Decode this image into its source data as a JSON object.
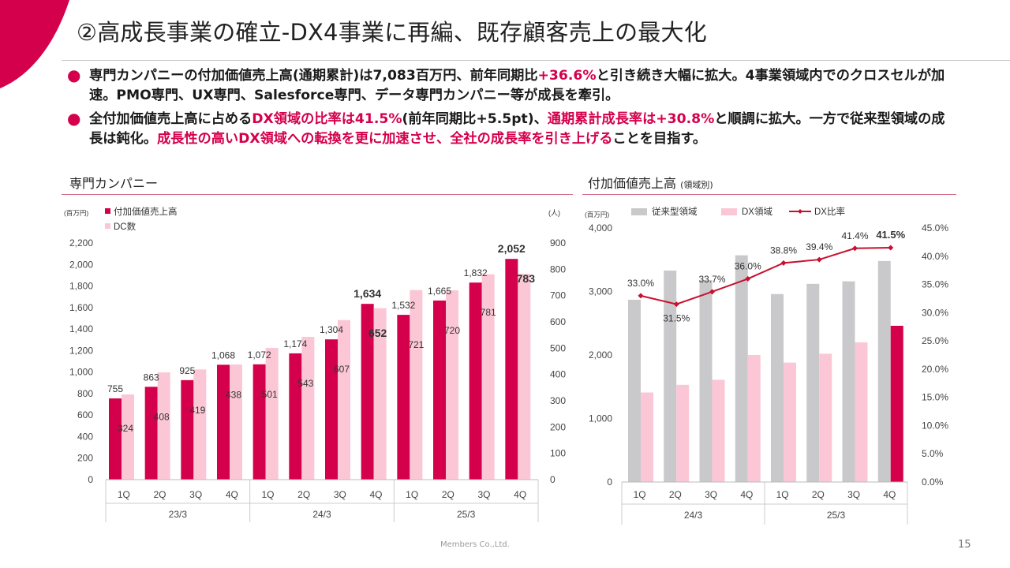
{
  "title": "②高成長事業の確立-DX4事業に再編、既存顧客売上の最大化",
  "bullets": [
    {
      "pre": "専門カンパニーの付加価値売上高(通期累計)は7,083百万円、前年同期比",
      "hl1": "+36.6%",
      "mid": "と引き続き大幅に拡大。4事業領域内でのクロスセルが加速。PMO専門、UX専門、Salesforce専門、データ専門カンパニー等が成長を牽引。",
      "hl2": "",
      "post": ""
    },
    {
      "pre": "全付加価値売上高に占める",
      "hl1": "DX領域の比率は41.5%",
      "mid": "(前年同期比+5.5pt)、",
      "hl2": "通期累計成長率は+30.8%",
      "post": "と順調に拡大。一方で従来型領域の成長は鈍化。",
      "hl3": "成長性の高いDX領域への転換を更に加速させ、全社の成長率を引き上げる",
      "post2": "ことを目指す。"
    }
  ],
  "colors": {
    "accent": "#d5004b",
    "pink": "#fbc7d6",
    "gray": "#c9c9cc",
    "line": "#c8102e"
  },
  "footer": "Members Co.,Ltd.",
  "page_number": "15",
  "chart_data": [
    {
      "type": "bar",
      "title": "専門カンパニー",
      "ylabel_left": "(百万円)",
      "ylabel_right": "(人)",
      "categories": [
        "1Q",
        "2Q",
        "3Q",
        "4Q",
        "1Q",
        "2Q",
        "3Q",
        "4Q",
        "1Q",
        "2Q",
        "3Q",
        "4Q"
      ],
      "groups": [
        {
          "label": "23/3",
          "count": 4
        },
        {
          "label": "24/3",
          "count": 4
        },
        {
          "label": "25/3",
          "count": 4
        }
      ],
      "series": [
        {
          "name": "付加価値売上高",
          "axis": "left",
          "color": "#d5004b",
          "values": [
            755,
            863,
            925,
            1068,
            1072,
            1174,
            1304,
            1634,
            1532,
            1665,
            1832,
            2052
          ],
          "labels": [
            "755",
            "863",
            "925",
            "1,068",
            "1,072",
            "1,174",
            "1,304",
            "1,634",
            "1,532",
            "1,665",
            "1,832",
            "2,052"
          ]
        },
        {
          "name": "DC数",
          "axis": "right",
          "color": "#fbc7d6",
          "values": [
            324,
            408,
            419,
            438,
            501,
            543,
            607,
            652,
            721,
            720,
            781,
            783
          ],
          "labels": [
            "324",
            "408",
            "419",
            "438",
            "501",
            "543",
            "607",
            "652",
            "721",
            "720",
            "781",
            "783"
          ]
        }
      ],
      "bold_labels": [
        "1,634",
        "2,052",
        "652",
        "783"
      ],
      "ylim_left": [
        0,
        2200
      ],
      "yticks_left": [
        "0",
        "200",
        "400",
        "600",
        "800",
        "1,000",
        "1,200",
        "1,400",
        "1,600",
        "1,800",
        "2,000",
        "2,200"
      ],
      "ylim_right": [
        0,
        900
      ],
      "yticks_right": [
        "0",
        "100",
        "200",
        "300",
        "400",
        "500",
        "600",
        "700",
        "800",
        "900"
      ]
    },
    {
      "type": "bar+line",
      "title": "付加価値売上高",
      "title_note": "(領域別)",
      "ylabel_left": "(百万円)",
      "categories": [
        "1Q",
        "2Q",
        "3Q",
        "4Q",
        "1Q",
        "2Q",
        "3Q",
        "4Q"
      ],
      "groups": [
        {
          "label": "24/3",
          "count": 4
        },
        {
          "label": "25/3",
          "count": 4
        }
      ],
      "series": [
        {
          "name": "従来型領域",
          "axis": "left",
          "color": "#c9c9cc",
          "values": [
            2870,
            3330,
            3180,
            3570,
            2960,
            3120,
            3160,
            3480
          ]
        },
        {
          "name": "DX領域",
          "axis": "left",
          "color": "#fbc7d6",
          "values": [
            1410,
            1530,
            1610,
            2000,
            1880,
            2020,
            2200,
            2460
          ],
          "last_color": "#d5004b"
        },
        {
          "name": "DX比率",
          "axis": "right",
          "type": "line",
          "color": "#c8102e",
          "values": [
            33.0,
            31.5,
            33.7,
            36.0,
            38.8,
            39.4,
            41.4,
            41.5
          ],
          "labels": [
            "33.0%",
            "31.5%",
            "33.7%",
            "36.0%",
            "38.8%",
            "39.4%",
            "41.4%",
            "41.5%"
          ]
        }
      ],
      "ylim_left": [
        0,
        4000
      ],
      "yticks_left": [
        "0",
        "1,000",
        "2,000",
        "3,000",
        "4,000"
      ],
      "ylim_right": [
        0,
        45
      ],
      "yticks_right": [
        "0.0%",
        "5.0%",
        "10.0%",
        "15.0%",
        "20.0%",
        "25.0%",
        "30.0%",
        "35.0%",
        "40.0%",
        "45.0%"
      ]
    }
  ]
}
